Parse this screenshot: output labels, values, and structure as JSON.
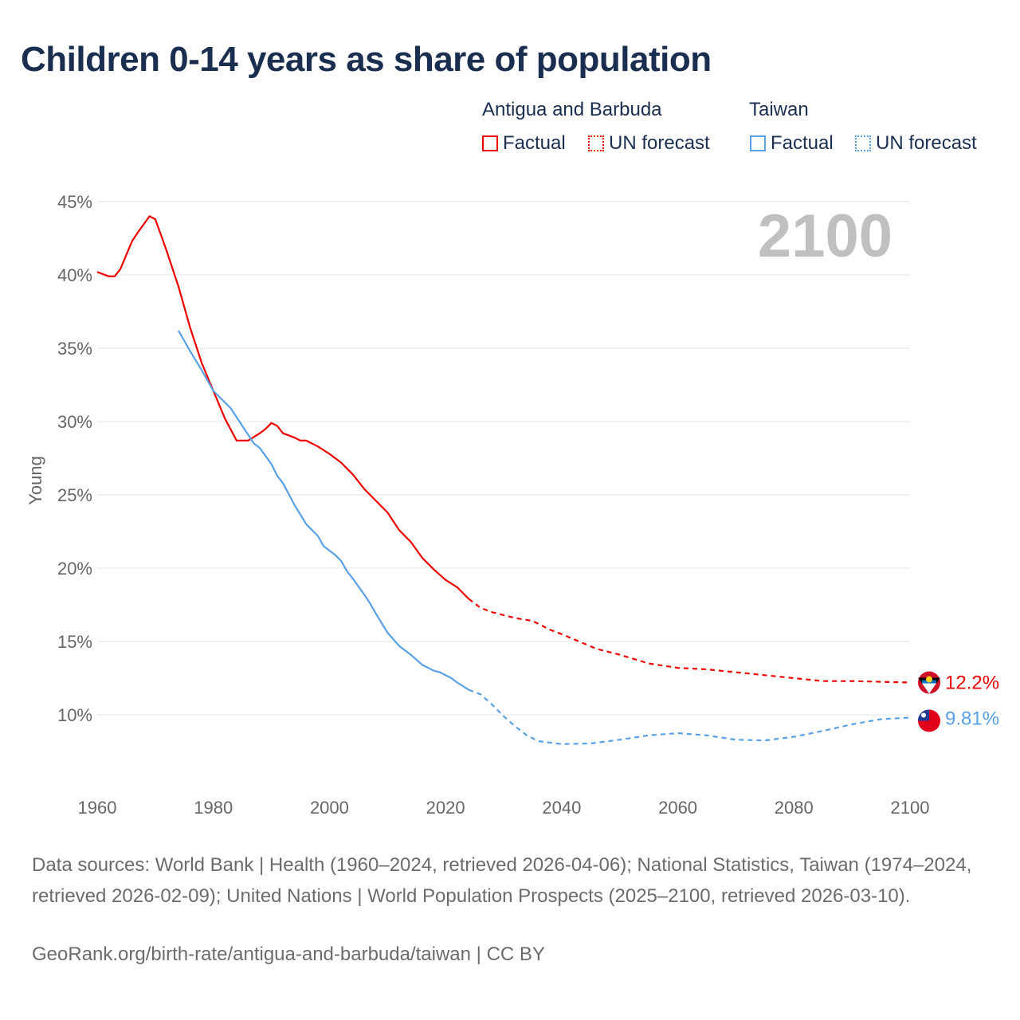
{
  "title": "Children 0-14 years as share of population",
  "legend": {
    "groups": [
      {
        "name": "Antigua and Barbuda",
        "color": "#ee0000",
        "factual_label": "Factual",
        "forecast_label": "UN forecast"
      },
      {
        "name": "Taiwan",
        "color": "#5aa0e6",
        "factual_label": "Factual",
        "forecast_label": "UN forecast"
      }
    ]
  },
  "year_label": "2100",
  "chart_data": {
    "type": "line",
    "title": "Children 0-14 years as share of population",
    "xlabel": "",
    "ylabel": "Young",
    "xlim": [
      1960,
      2100
    ],
    "ylim": [
      5,
      45
    ],
    "x_ticks": [
      "1960",
      "1980",
      "2000",
      "2020",
      "2040",
      "2060",
      "2080",
      "2100"
    ],
    "x_tick_values": [
      1960,
      1980,
      2000,
      2020,
      2040,
      2060,
      2080,
      2100
    ],
    "y_ticks": [
      "10%",
      "15%",
      "20%",
      "25%",
      "30%",
      "35%",
      "40%",
      "45%"
    ],
    "y_tick_values": [
      10,
      15,
      20,
      25,
      30,
      35,
      40,
      45
    ],
    "grid": true,
    "series": [
      {
        "name": "Antigua and Barbuda",
        "color": "#ee0000",
        "end_label": "12.2%",
        "factual": {
          "x": [
            1960,
            1962,
            1963,
            1964,
            1966,
            1967,
            1969,
            1970,
            1972,
            1974,
            1976,
            1978,
            1980,
            1982,
            1984,
            1986,
            1988,
            1989,
            1990,
            1991,
            1992,
            1994,
            1995,
            1996,
            1998,
            2000,
            2002,
            2004,
            2006,
            2008,
            2010,
            2012,
            2014,
            2016,
            2018,
            2020,
            2022,
            2024
          ],
          "y": [
            40.2,
            39.9,
            39.9,
            40.4,
            42.3,
            42.9,
            44.0,
            43.8,
            41.6,
            39.2,
            36.4,
            34.0,
            32.1,
            30.2,
            28.7,
            28.7,
            29.2,
            29.5,
            29.9,
            29.7,
            29.2,
            28.9,
            28.7,
            28.7,
            28.3,
            27.8,
            27.2,
            26.4,
            25.4,
            24.6,
            23.8,
            22.6,
            21.8,
            20.7,
            19.9,
            19.2,
            18.7,
            17.9
          ]
        },
        "forecast": {
          "x": [
            2024,
            2026,
            2028,
            2030,
            2032,
            2035,
            2038,
            2040,
            2043,
            2046,
            2050,
            2055,
            2060,
            2065,
            2070,
            2075,
            2080,
            2085,
            2090,
            2095,
            2100
          ],
          "y": [
            17.9,
            17.3,
            17.0,
            16.8,
            16.6,
            16.4,
            15.8,
            15.5,
            15.0,
            14.5,
            14.1,
            13.5,
            13.2,
            13.1,
            12.9,
            12.7,
            12.5,
            12.3,
            12.3,
            12.25,
            12.2
          ]
        }
      },
      {
        "name": "Taiwan",
        "color": "#5aa0e6",
        "end_label": "9.81%",
        "factual": {
          "x": [
            1974,
            1976,
            1978,
            1980,
            1982,
            1983,
            1985,
            1987,
            1988,
            1990,
            1991,
            1992,
            1994,
            1996,
            1998,
            1999,
            2001,
            2002,
            2003,
            2004,
            2006,
            2007,
            2008,
            2010,
            2012,
            2014,
            2016,
            2018,
            2019,
            2021,
            2022,
            2024
          ],
          "y": [
            36.2,
            34.8,
            33.5,
            32.1,
            31.3,
            30.9,
            29.7,
            28.5,
            28.2,
            27.1,
            26.3,
            25.8,
            24.3,
            23.0,
            22.2,
            21.5,
            20.9,
            20.5,
            19.8,
            19.3,
            18.2,
            17.6,
            16.9,
            15.6,
            14.7,
            14.1,
            13.4,
            13.0,
            12.9,
            12.5,
            12.2,
            11.7
          ]
        },
        "forecast": {
          "x": [
            2024,
            2026,
            2028,
            2030,
            2032,
            2034,
            2036,
            2040,
            2045,
            2050,
            2055,
            2060,
            2065,
            2070,
            2075,
            2080,
            2085,
            2090,
            2095,
            2100
          ],
          "y": [
            11.7,
            11.4,
            10.7,
            9.9,
            9.2,
            8.6,
            8.2,
            8.0,
            8.05,
            8.3,
            8.6,
            8.75,
            8.6,
            8.3,
            8.25,
            8.5,
            8.9,
            9.35,
            9.7,
            9.81
          ]
        }
      }
    ]
  },
  "footer": {
    "sources": "Data sources: World Bank | Health (1960–2024, retrieved 2026-04-06); National Statistics, Taiwan (1974–2024, retrieved 2026-02-09); United Nations | World Population Prospects (2025–2100, retrieved 2026-03-10).",
    "credit": "GeoRank.org/birth-rate/antigua-and-barbuda/taiwan | CC BY"
  }
}
